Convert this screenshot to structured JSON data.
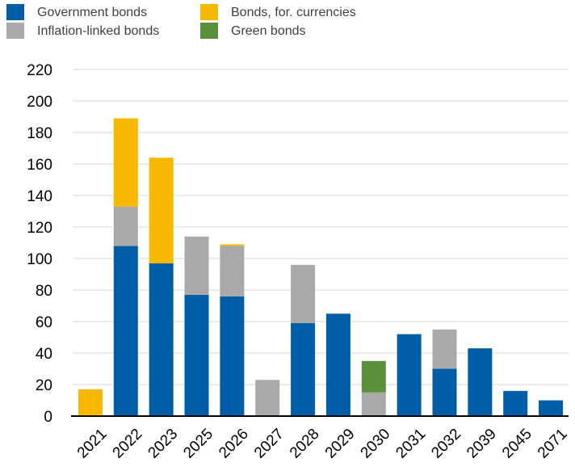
{
  "chart_data": {
    "type": "bar",
    "stacked": true,
    "categories": [
      "2021",
      "2022",
      "2023",
      "2025",
      "2026",
      "2027",
      "2028",
      "2029",
      "2030",
      "2031",
      "2032",
      "2039",
      "2045",
      "2071"
    ],
    "series": [
      {
        "name": "Government bonds",
        "color": "#005ea8",
        "values": [
          0,
          108,
          97,
          77,
          76,
          0,
          59,
          65,
          0,
          52,
          30,
          43,
          16,
          10
        ]
      },
      {
        "name": "Inflation-linked bonds",
        "color": "#a9a9a9",
        "values": [
          0,
          25,
          0,
          37,
          32,
          23,
          37,
          0,
          15,
          0,
          25,
          0,
          0,
          0
        ]
      },
      {
        "name": "Bonds, for. currencies",
        "color": "#f8b800",
        "values": [
          17,
          56,
          67,
          0,
          1,
          0,
          0,
          0,
          0,
          0,
          0,
          0,
          0,
          0
        ]
      },
      {
        "name": "Green bonds",
        "color": "#5a8f3c",
        "values": [
          0,
          0,
          0,
          0,
          0,
          0,
          0,
          0,
          20,
          0,
          0,
          0,
          0,
          0
        ]
      }
    ],
    "ylim": [
      0,
      220
    ],
    "yticks": [
      0,
      20,
      40,
      60,
      80,
      100,
      120,
      140,
      160,
      180,
      200,
      220
    ],
    "grid": true,
    "legend_position": "top-left"
  }
}
